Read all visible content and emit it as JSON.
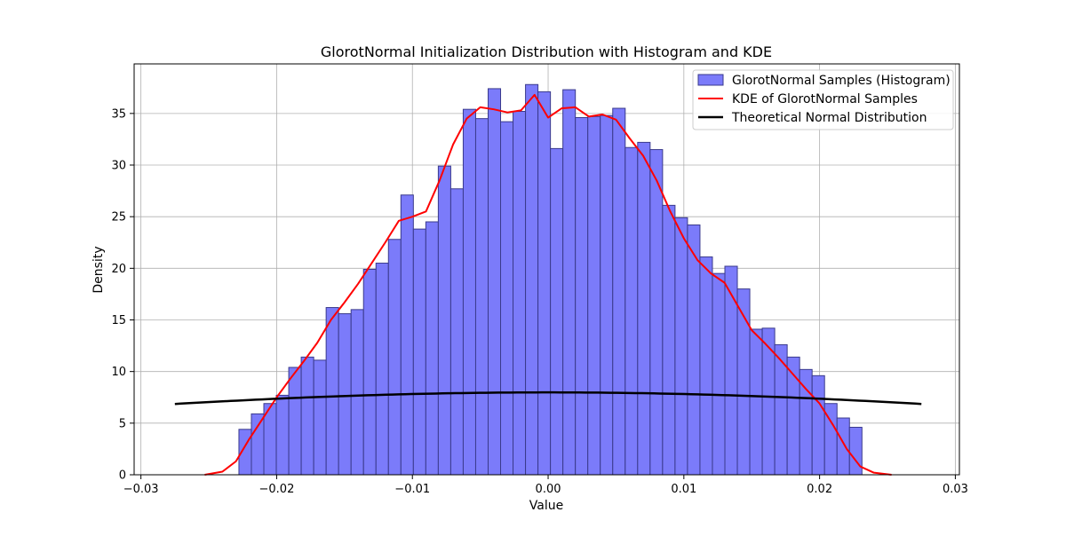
{
  "chart_data": {
    "type": "bar",
    "title": "GlorotNormal Initialization Distribution with Histogram and KDE",
    "xlabel": "Value",
    "ylabel": "Density",
    "xlim": [
      -0.0305,
      0.0303
    ],
    "ylim": [
      0,
      39.8
    ],
    "xticks": [
      -0.03,
      -0.02,
      -0.01,
      0.0,
      0.01,
      0.02,
      0.03
    ],
    "xtick_labels": [
      "−0.03",
      "−0.02",
      "−0.01",
      "0.00",
      "0.01",
      "0.02",
      "0.03"
    ],
    "yticks": [
      0,
      5,
      10,
      15,
      20,
      25,
      30,
      35
    ],
    "ytick_labels": [
      "0",
      "5",
      "10",
      "15",
      "20",
      "25",
      "30",
      "35"
    ],
    "grid": true,
    "legend_position": "top-right",
    "histogram": {
      "name": "GlorotNormal Samples (Histogram)",
      "color": "#7b7bfa",
      "edge_color": "#3a3a8c",
      "bin_start": -0.02278,
      "bin_width": 0.000918,
      "values": [
        4.4,
        5.9,
        6.9,
        7.7,
        10.4,
        11.4,
        11.1,
        16.2,
        15.6,
        16.0,
        19.9,
        20.5,
        22.8,
        27.1,
        23.8,
        24.5,
        29.9,
        27.7,
        35.4,
        34.5,
        37.4,
        34.2,
        35.2,
        37.8,
        37.1,
        31.6,
        37.3,
        34.6,
        34.7,
        34.8,
        35.5,
        31.7,
        32.2,
        31.5,
        26.1,
        24.9,
        24.2,
        21.1,
        19.5,
        20.2,
        18.0,
        14.1,
        14.2,
        12.6,
        11.4,
        10.2,
        9.6,
        6.9,
        5.5,
        4.6
      ]
    },
    "kde": {
      "name": "KDE of GlorotNormal Samples",
      "color": "#ff0000",
      "x": [
        -0.0253,
        -0.024,
        -0.023,
        -0.022,
        -0.021,
        -0.02,
        -0.019,
        -0.018,
        -0.017,
        -0.016,
        -0.015,
        -0.014,
        -0.013,
        -0.012,
        -0.011,
        -0.01,
        -0.009,
        -0.008,
        -0.007,
        -0.006,
        -0.005,
        -0.004,
        -0.003,
        -0.002,
        -0.001,
        0.0,
        0.001,
        0.002,
        0.003,
        0.004,
        0.005,
        0.006,
        0.007,
        0.008,
        0.009,
        0.01,
        0.011,
        0.012,
        0.013,
        0.014,
        0.015,
        0.016,
        0.017,
        0.018,
        0.019,
        0.02,
        0.021,
        0.022,
        0.023,
        0.024,
        0.0253
      ],
      "y": [
        0.0,
        0.3,
        1.3,
        3.5,
        5.5,
        7.5,
        9.3,
        11.0,
        12.8,
        15.0,
        16.7,
        18.5,
        20.5,
        22.5,
        24.6,
        25.0,
        25.5,
        28.5,
        32.0,
        34.5,
        35.6,
        35.4,
        35.1,
        35.3,
        36.8,
        34.6,
        35.5,
        35.6,
        34.7,
        34.9,
        34.4,
        32.6,
        30.9,
        28.5,
        25.5,
        22.9,
        20.8,
        19.5,
        18.6,
        16.3,
        14.0,
        12.7,
        11.3,
        9.8,
        8.3,
        6.9,
        4.8,
        2.5,
        0.8,
        0.2,
        0.0
      ]
    },
    "normal": {
      "name": "Theoretical Normal Distribution",
      "color": "#000000",
      "mean": 0.0,
      "std": 0.05,
      "x_range": [
        -0.0275,
        0.0275
      ]
    }
  }
}
